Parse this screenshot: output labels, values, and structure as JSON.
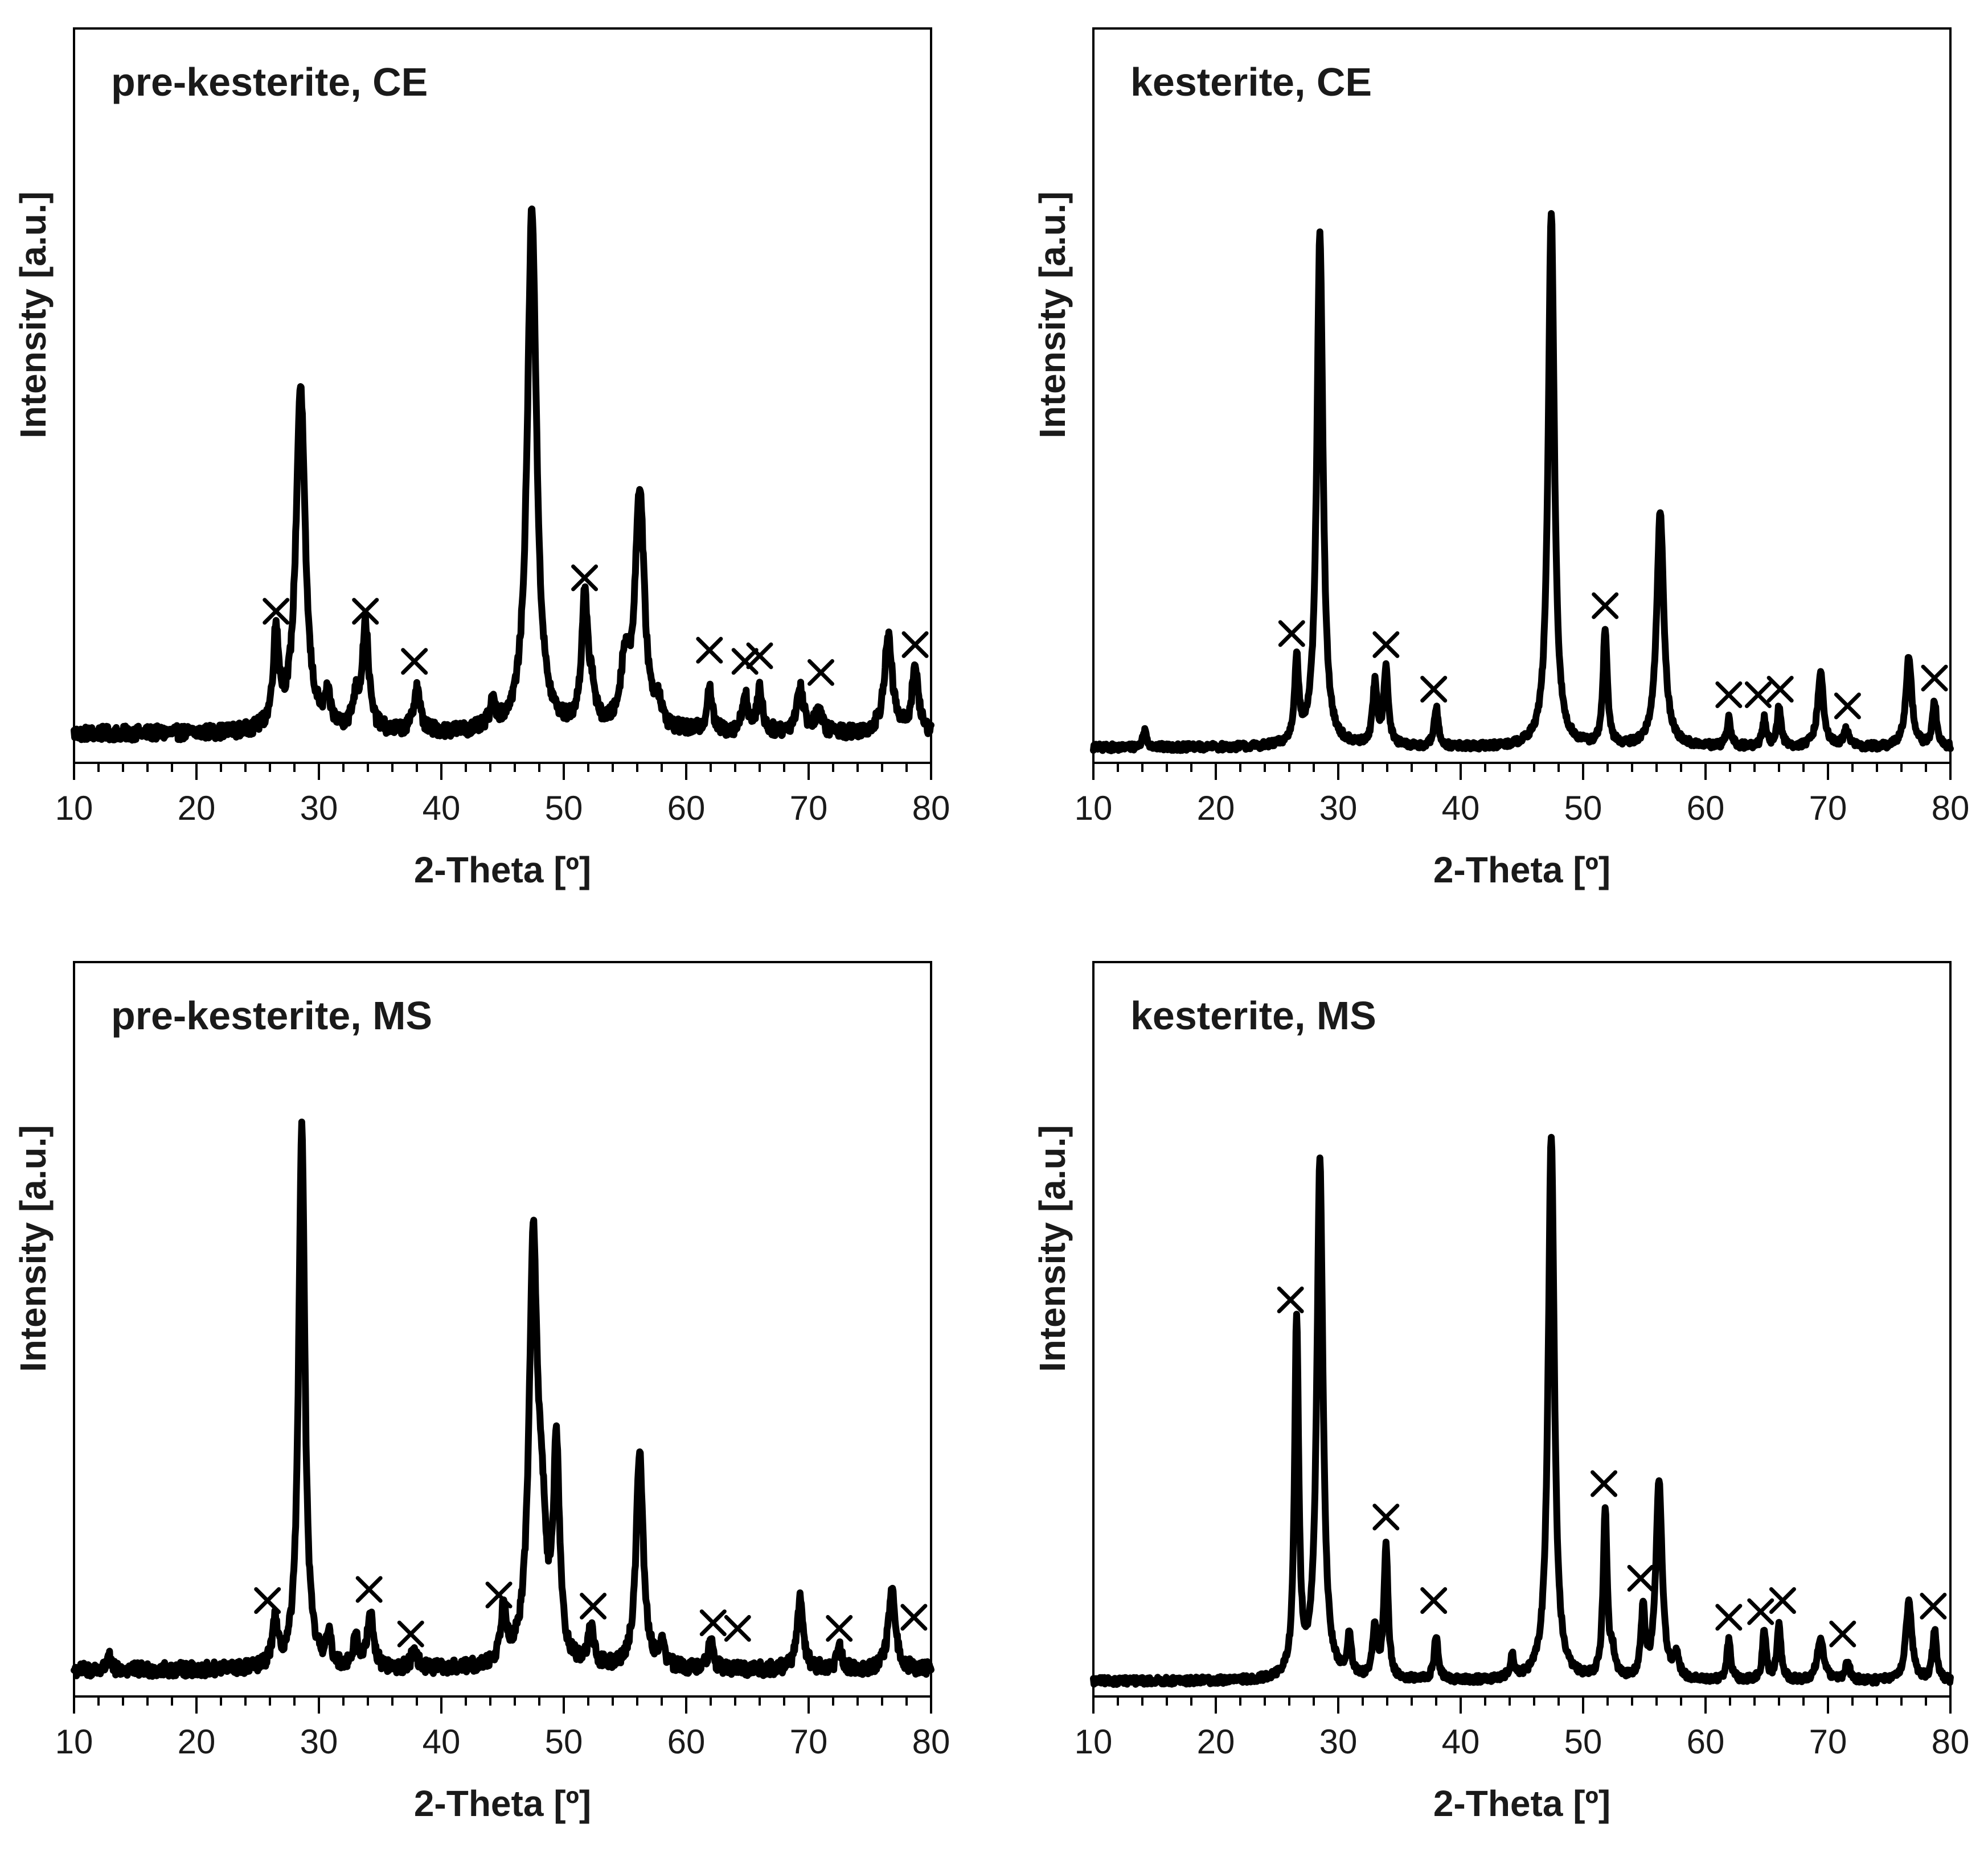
{
  "chart_data": [
    {
      "type": "line",
      "title": "pre-kesterite, CE",
      "xlabel": "2-Theta [º]",
      "ylabel": "Intensity [a.u.]",
      "xlim": [
        10,
        80
      ],
      "ylim": [
        0,
        100
      ],
      "xticks": [
        10,
        20,
        30,
        40,
        50,
        60,
        70,
        80
      ],
      "x_minor_step": 2,
      "baseline": 4,
      "noise": 0.8,
      "peaks": [
        {
          "x": 26.5,
          "h": 17,
          "w": 0.28
        },
        {
          "x": 28.5,
          "h": 62,
          "w": 0.45
        },
        {
          "x": 30.7,
          "h": 5,
          "w": 0.3
        },
        {
          "x": 33.0,
          "h": 5,
          "w": 0.3
        },
        {
          "x": 33.8,
          "h": 19,
          "w": 0.32
        },
        {
          "x": 38.0,
          "h": 8,
          "w": 0.3
        },
        {
          "x": 44.2,
          "h": 4,
          "w": 0.3
        },
        {
          "x": 47.4,
          "h": 94,
          "w": 0.45
        },
        {
          "x": 51.7,
          "h": 23,
          "w": 0.3
        },
        {
          "x": 52.3,
          "h": 6,
          "w": 0.3
        },
        {
          "x": 55.0,
          "h": 11,
          "w": 0.4
        },
        {
          "x": 56.2,
          "h": 43,
          "w": 0.45
        },
        {
          "x": 57.7,
          "h": 4,
          "w": 0.3
        },
        {
          "x": 61.9,
          "h": 8,
          "w": 0.25
        },
        {
          "x": 64.8,
          "h": 7,
          "w": 0.25
        },
        {
          "x": 66.0,
          "h": 8,
          "w": 0.25
        },
        {
          "x": 69.3,
          "h": 8,
          "w": 0.35
        },
        {
          "x": 70.8,
          "h": 4,
          "w": 0.3
        },
        {
          "x": 76.5,
          "h": 17,
          "w": 0.4
        },
        {
          "x": 78.7,
          "h": 12,
          "w": 0.3
        }
      ],
      "markers": [
        {
          "x": 26.5,
          "y": 26
        },
        {
          "x": 33.8,
          "y": 26
        },
        {
          "x": 37.8,
          "y": 17
        },
        {
          "x": 51.7,
          "y": 32
        },
        {
          "x": 61.9,
          "y": 19
        },
        {
          "x": 64.8,
          "y": 17
        },
        {
          "x": 66.0,
          "y": 18
        },
        {
          "x": 71.0,
          "y": 15
        },
        {
          "x": 78.7,
          "y": 20
        }
      ]
    },
    {
      "type": "line",
      "title": "kesterite, CE",
      "xlabel": "2-Theta [º]",
      "ylabel": "Intensity [a.u.]",
      "xlim": [
        10,
        80
      ],
      "ylim": [
        0,
        100
      ],
      "xticks": [
        10,
        20,
        30,
        40,
        50,
        60,
        70,
        80
      ],
      "x_minor_step": 2,
      "baseline": 1.5,
      "noise": 0.4,
      "peaks": [
        {
          "x": 14.2,
          "h": 3,
          "w": 0.2
        },
        {
          "x": 26.6,
          "h": 15,
          "w": 0.2
        },
        {
          "x": 28.5,
          "h": 92,
          "w": 0.3
        },
        {
          "x": 33.0,
          "h": 11,
          "w": 0.22
        },
        {
          "x": 33.9,
          "h": 14,
          "w": 0.22
        },
        {
          "x": 38.0,
          "h": 7,
          "w": 0.2
        },
        {
          "x": 47.4,
          "h": 96,
          "w": 0.3
        },
        {
          "x": 51.8,
          "h": 21,
          "w": 0.2
        },
        {
          "x": 56.3,
          "h": 42,
          "w": 0.35
        },
        {
          "x": 61.9,
          "h": 5,
          "w": 0.2
        },
        {
          "x": 64.8,
          "h": 5,
          "w": 0.2
        },
        {
          "x": 66.0,
          "h": 7,
          "w": 0.2
        },
        {
          "x": 69.4,
          "h": 13,
          "w": 0.3
        },
        {
          "x": 71.5,
          "h": 3,
          "w": 0.25
        },
        {
          "x": 76.6,
          "h": 16,
          "w": 0.3
        },
        {
          "x": 78.7,
          "h": 8,
          "w": 0.2
        }
      ],
      "markers": [
        {
          "x": 26.2,
          "y": 22
        },
        {
          "x": 33.9,
          "y": 20
        },
        {
          "x": 37.8,
          "y": 12
        },
        {
          "x": 51.8,
          "y": 27
        },
        {
          "x": 61.9,
          "y": 11
        },
        {
          "x": 64.3,
          "y": 11
        },
        {
          "x": 66.1,
          "y": 12
        },
        {
          "x": 71.6,
          "y": 9
        },
        {
          "x": 78.7,
          "y": 14
        }
      ]
    },
    {
      "type": "line",
      "title": "pre-kesterite, MS",
      "xlabel": "2-Theta [º]",
      "ylabel": "Intensity [a.u.]",
      "xlim": [
        10,
        80
      ],
      "ylim": [
        0,
        100
      ],
      "xticks": [
        10,
        20,
        30,
        40,
        50,
        60,
        70,
        80
      ],
      "x_minor_step": 2,
      "baseline": 3.5,
      "noise": 0.8,
      "peaks": [
        {
          "x": 12.8,
          "h": 3,
          "w": 0.15
        },
        {
          "x": 26.4,
          "h": 8,
          "w": 0.25
        },
        {
          "x": 28.6,
          "h": 98,
          "w": 0.3
        },
        {
          "x": 30.8,
          "h": 5,
          "w": 0.25
        },
        {
          "x": 33.0,
          "h": 5,
          "w": 0.25
        },
        {
          "x": 34.2,
          "h": 10,
          "w": 0.3
        },
        {
          "x": 37.8,
          "h": 4,
          "w": 0.25
        },
        {
          "x": 45.1,
          "h": 10,
          "w": 0.3
        },
        {
          "x": 47.5,
          "h": 74,
          "w": 0.4
        },
        {
          "x": 48.2,
          "h": 20,
          "w": 0.4
        },
        {
          "x": 49.4,
          "h": 38,
          "w": 0.3
        },
        {
          "x": 52.2,
          "h": 7,
          "w": 0.25
        },
        {
          "x": 56.2,
          "h": 39,
          "w": 0.35
        },
        {
          "x": 58.0,
          "h": 4,
          "w": 0.3
        },
        {
          "x": 62.0,
          "h": 5,
          "w": 0.25
        },
        {
          "x": 69.3,
          "h": 13,
          "w": 0.3
        },
        {
          "x": 72.5,
          "h": 4,
          "w": 0.25
        },
        {
          "x": 76.8,
          "h": 14,
          "w": 0.35
        }
      ],
      "markers": [
        {
          "x": 25.8,
          "y": 16
        },
        {
          "x": 34.1,
          "y": 18
        },
        {
          "x": 37.5,
          "y": 10
        },
        {
          "x": 44.7,
          "y": 17
        },
        {
          "x": 52.4,
          "y": 15
        },
        {
          "x": 62.2,
          "y": 12
        },
        {
          "x": 64.2,
          "y": 11
        },
        {
          "x": 72.5,
          "y": 11
        },
        {
          "x": 78.6,
          "y": 13
        }
      ]
    },
    {
      "type": "line",
      "title": "kesterite, MS",
      "xlabel": "2-Theta [º]",
      "ylabel": "Intensity [a.u.]",
      "xlim": [
        10,
        80
      ],
      "ylim": [
        0,
        100
      ],
      "xticks": [
        10,
        20,
        30,
        40,
        50,
        60,
        70,
        80
      ],
      "x_minor_step": 2,
      "baseline": 1.5,
      "noise": 0.4,
      "peaks": [
        {
          "x": 26.6,
          "h": 64,
          "w": 0.2
        },
        {
          "x": 28.5,
          "h": 93,
          "w": 0.3
        },
        {
          "x": 30.9,
          "h": 7,
          "w": 0.2
        },
        {
          "x": 33.0,
          "h": 9,
          "w": 0.22
        },
        {
          "x": 33.9,
          "h": 24,
          "w": 0.2
        },
        {
          "x": 38.0,
          "h": 8,
          "w": 0.2
        },
        {
          "x": 44.2,
          "h": 4,
          "w": 0.2
        },
        {
          "x": 47.4,
          "h": 98,
          "w": 0.3
        },
        {
          "x": 51.8,
          "h": 30,
          "w": 0.2
        },
        {
          "x": 52.4,
          "h": 4,
          "w": 0.2
        },
        {
          "x": 54.9,
          "h": 12,
          "w": 0.2
        },
        {
          "x": 56.2,
          "h": 36,
          "w": 0.3
        },
        {
          "x": 57.6,
          "h": 4,
          "w": 0.25
        },
        {
          "x": 61.9,
          "h": 7,
          "w": 0.2
        },
        {
          "x": 64.8,
          "h": 9,
          "w": 0.18
        },
        {
          "x": 66.0,
          "h": 10,
          "w": 0.2
        },
        {
          "x": 69.4,
          "h": 8,
          "w": 0.3
        },
        {
          "x": 71.6,
          "h": 3,
          "w": 0.25
        },
        {
          "x": 76.6,
          "h": 14,
          "w": 0.3
        },
        {
          "x": 78.7,
          "h": 9,
          "w": 0.2
        }
      ],
      "markers": [
        {
          "x": 26.1,
          "y": 70
        },
        {
          "x": 33.9,
          "y": 31
        },
        {
          "x": 37.8,
          "y": 16
        },
        {
          "x": 51.7,
          "y": 37
        },
        {
          "x": 54.7,
          "y": 20
        },
        {
          "x": 61.9,
          "y": 13
        },
        {
          "x": 64.5,
          "y": 14
        },
        {
          "x": 66.3,
          "y": 16
        },
        {
          "x": 71.2,
          "y": 10
        },
        {
          "x": 78.6,
          "y": 15
        }
      ]
    }
  ]
}
